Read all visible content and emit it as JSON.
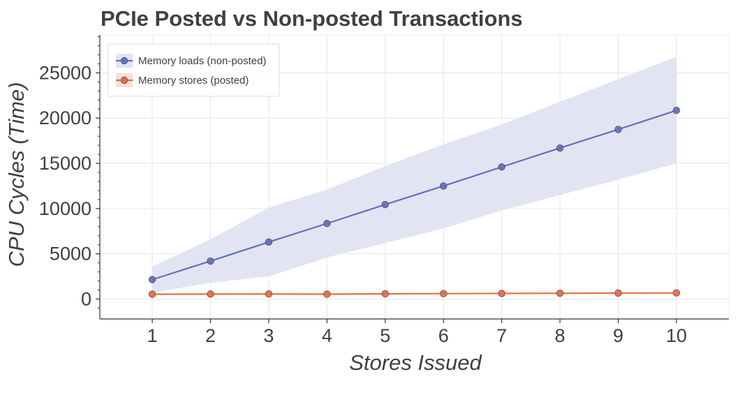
{
  "chart_data": {
    "type": "line",
    "title": "PCIe Posted vs Non-posted Transactions",
    "xlabel": "Stores Issued",
    "ylabel": "CPU Cycles (Time)",
    "x": [
      1,
      2,
      3,
      4,
      5,
      6,
      7,
      8,
      9,
      10
    ],
    "xlim": [
      0.1,
      10.9
    ],
    "ylim": [
      -2200,
      29200
    ],
    "yticks": [
      0,
      5000,
      10000,
      15000,
      20000,
      25000
    ],
    "grid": true,
    "legend": "top-left",
    "series": [
      {
        "name": "Memory loads (non-posted)",
        "color": "#6370bd",
        "band_color": "#e2e4f3",
        "values": [
          2150,
          4200,
          6300,
          8350,
          10450,
          12500,
          14600,
          16700,
          18750,
          20850
        ],
        "lower": [
          700,
          1800,
          2500,
          4600,
          6200,
          7800,
          9800,
          11500,
          13200,
          15000
        ],
        "upper": [
          3600,
          6600,
          10100,
          12100,
          14700,
          17100,
          19300,
          21800,
          24300,
          26800
        ]
      },
      {
        "name": "Memory stores (posted)",
        "color": "#e66e47",
        "band_color": "#f8e0d8",
        "values": [
          530,
          550,
          560,
          540,
          580,
          600,
          620,
          640,
          660,
          680
        ],
        "lower": [
          480,
          500,
          510,
          490,
          530,
          550,
          570,
          590,
          610,
          630
        ],
        "upper": [
          580,
          600,
          610,
          590,
          630,
          650,
          670,
          690,
          710,
          730
        ]
      }
    ]
  }
}
